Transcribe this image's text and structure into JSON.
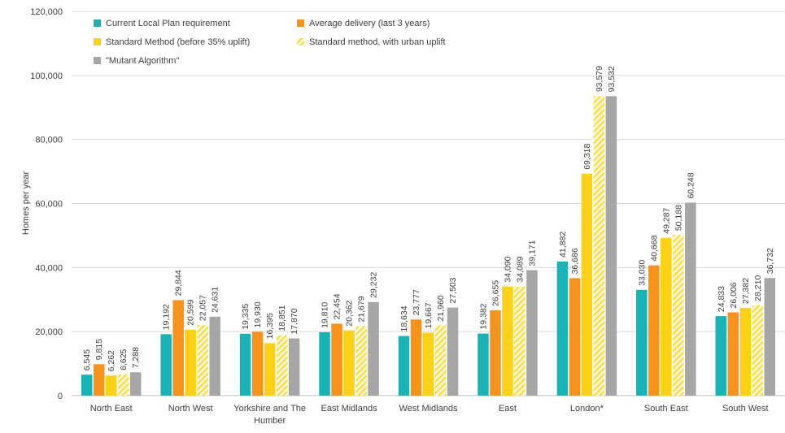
{
  "chart_data": {
    "type": "bar",
    "title": "",
    "xlabel": "",
    "ylabel": "Homes per year",
    "ylim": [
      0,
      120000
    ],
    "yticks": [
      0,
      20000,
      40000,
      60000,
      80000,
      100000,
      120000
    ],
    "ytick_labels": [
      "0",
      "20,000",
      "40,000",
      "60,000",
      "80,000",
      "100,000",
      "120,000"
    ],
    "grid": true,
    "legend_position": "top-left",
    "categories": [
      "North East",
      "North West",
      "Yorkshire and The Humber",
      "East Midlands",
      "West Midlands",
      "East",
      "London*",
      "South East",
      "South West"
    ],
    "category_label_lines": [
      [
        "North East"
      ],
      [
        "North West"
      ],
      [
        "Yorkshire and The",
        "Humber"
      ],
      [
        "East Midlands"
      ],
      [
        "West Midlands"
      ],
      [
        "East"
      ],
      [
        "London*"
      ],
      [
        "South East"
      ],
      [
        "South West"
      ]
    ],
    "series": [
      {
        "name": "Current Local Plan requirement",
        "color": "#17b3b5",
        "pattern": "solid",
        "values": [
          6545,
          19192,
          19335,
          19810,
          18634,
          19382,
          41882,
          33030,
          24833
        ],
        "labels": [
          "6,545",
          "19,192",
          "19,335",
          "19,810",
          "18,634",
          "19,382",
          "41,882",
          "33,030",
          "24,833"
        ]
      },
      {
        "name": "Average delivery (last 3 years)",
        "color": "#f6921e",
        "pattern": "solid",
        "values": [
          9815,
          29844,
          19930,
          22454,
          23777,
          26655,
          36686,
          40668,
          26006
        ],
        "labels": [
          "9,815",
          "29,844",
          "19,930",
          "22,454",
          "23,777",
          "26,655",
          "36,686",
          "40,668",
          "26,006"
        ]
      },
      {
        "name": "Standard Method (before 35% uplift)",
        "color": "#fcd116",
        "pattern": "solid",
        "values": [
          6262,
          20599,
          16395,
          20362,
          19667,
          34090,
          69318,
          49287,
          27382
        ],
        "labels": [
          "6,262",
          "20,599",
          "16,395",
          "20,362",
          "19,667",
          "34,090",
          "69,318",
          "49,287",
          "27,382"
        ]
      },
      {
        "name": "Standard method, with urban uplift",
        "color": "#fcd116",
        "pattern": "hatched",
        "values": [
          6625,
          22057,
          18851,
          21679,
          21960,
          34089,
          93579,
          50188,
          28210
        ],
        "labels": [
          "6,625",
          "22,057",
          "18,851",
          "21,679",
          "21,960",
          "34,089",
          "93,579",
          "50,188",
          "28,210"
        ]
      },
      {
        "name": "\"Mutant Algorithm\"",
        "color": "#a6a6a6",
        "pattern": "solid",
        "values": [
          7288,
          24631,
          17870,
          29232,
          27503,
          39171,
          93532,
          60248,
          36732
        ],
        "labels": [
          "7,288",
          "24,631",
          "17,870",
          "29,232",
          "27,503",
          "39,171",
          "93,532",
          "60,248",
          "36,732"
        ]
      }
    ]
  }
}
